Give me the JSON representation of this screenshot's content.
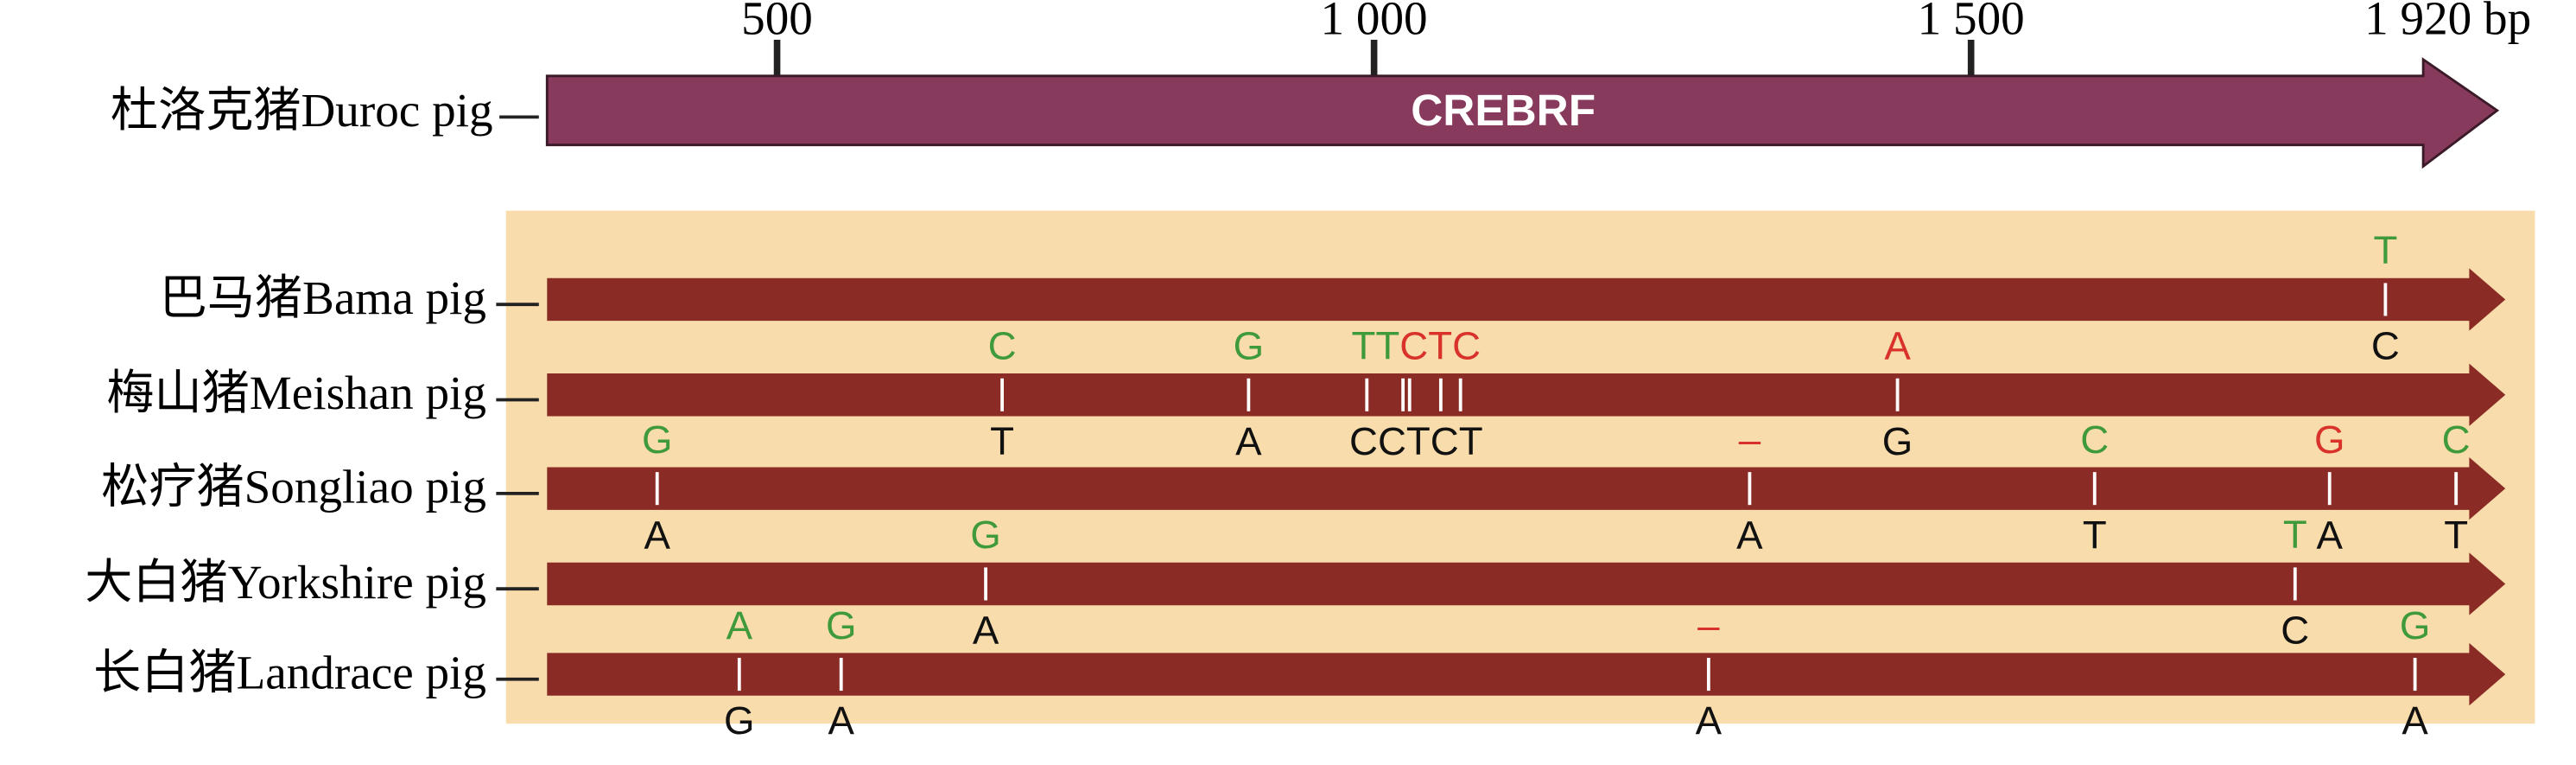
{
  "scale": {
    "ticks": [
      {
        "value": 500,
        "label": "500"
      },
      {
        "value": 1000,
        "label": "1 000"
      },
      {
        "value": 1500,
        "label": "1 500"
      },
      {
        "value": 1920,
        "label": "1 920 bp"
      }
    ]
  },
  "reference": {
    "label": "杜洛克猪Duroc pig",
    "gene": "CREBRF",
    "color": "#883a5c"
  },
  "panel_color": "#f8dcab",
  "row_color": "#8a2b26",
  "rows": [
    {
      "label": "巴马猪Bama pig",
      "variants": [
        {
          "top": [
            {
              "text": "T",
              "color": "#3f9a3c"
            }
          ],
          "bottom": "C"
        }
      ]
    },
    {
      "label": "梅山猪Meishan pig",
      "variants": [
        {
          "top": [
            {
              "text": "C",
              "color": "#3f9a3c"
            }
          ],
          "bottom": "T"
        },
        {
          "top": [
            {
              "text": "G",
              "color": "#3f9a3c"
            }
          ],
          "bottom": "A"
        },
        {
          "top": [
            {
              "text": "TT",
              "color": "#3f9a3c"
            },
            {
              "text": "CTC",
              "color": "#d9322b"
            }
          ],
          "bottom": "CCTCT"
        },
        {
          "top": [
            {
              "text": "A",
              "color": "#d9322b"
            }
          ],
          "bottom": "G"
        }
      ]
    },
    {
      "label": "松疗猪Songliao pig",
      "variants": [
        {
          "top": [
            {
              "text": "G",
              "color": "#3f9a3c"
            }
          ],
          "bottom": "A"
        },
        {
          "top": [
            {
              "text": "–",
              "color": "#d9322b"
            }
          ],
          "bottom": "A"
        },
        {
          "top": [
            {
              "text": "C",
              "color": "#3f9a3c"
            }
          ],
          "bottom": "T"
        },
        {
          "top": [
            {
              "text": "G",
              "color": "#d9322b"
            }
          ],
          "bottom": "A"
        },
        {
          "top": [
            {
              "text": "C",
              "color": "#3f9a3c"
            }
          ],
          "bottom": "T"
        }
      ]
    },
    {
      "label": "大白猪Yorkshire pig",
      "variants": [
        {
          "top": [
            {
              "text": "G",
              "color": "#3f9a3c"
            }
          ],
          "bottom": "A"
        },
        {
          "top": [
            {
              "text": "T",
              "color": "#3f9a3c"
            }
          ],
          "bottom": "C"
        }
      ]
    },
    {
      "label": "长白猪Landrace pig",
      "variants": [
        {
          "top": [
            {
              "text": "A",
              "color": "#3f9a3c"
            }
          ],
          "bottom": "G"
        },
        {
          "top": [
            {
              "text": "G",
              "color": "#3f9a3c"
            }
          ],
          "bottom": "A"
        },
        {
          "top": [
            {
              "text": "–",
              "color": "#d9322b"
            }
          ],
          "bottom": "A"
        },
        {
          "top": [
            {
              "text": "G",
              "color": "#3f9a3c"
            }
          ],
          "bottom": "A"
        }
      ]
    }
  ]
}
